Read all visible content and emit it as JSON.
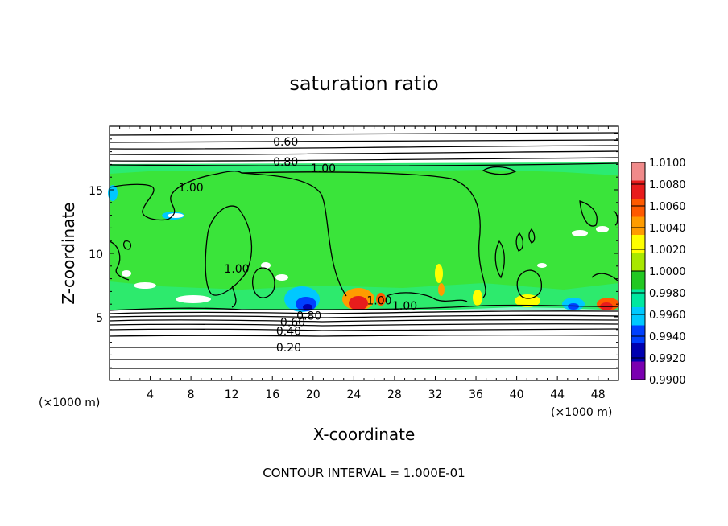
{
  "chart_data": {
    "type": "heatmap",
    "title": "saturation ratio",
    "xlabel": "X-coordinate",
    "ylabel": "Z-coordinate",
    "x_unit": "(×1000 m)",
    "z_unit": "(×1000 m)",
    "xlim": [
      0,
      50
    ],
    "ylim": [
      0,
      20
    ],
    "x_ticks": [
      4,
      8,
      12,
      16,
      20,
      24,
      28,
      32,
      36,
      40,
      44,
      48
    ],
    "y_ticks": [
      5,
      10,
      15
    ],
    "colorbar": {
      "ticks": [
        "1.0100",
        "1.0080",
        "1.0060",
        "1.0040",
        "1.0020",
        "1.0000",
        "0.9980",
        "0.9960",
        "0.9940",
        "0.9920",
        "0.9900"
      ],
      "colors": [
        "#f08a8a",
        "#e81c1c",
        "#ff5a00",
        "#ff9c00",
        "#ffff00",
        "#a8e800",
        "#22c822",
        "#00e8a0",
        "#00c8ff",
        "#0040ff",
        "#0000b0",
        "#7a00b0"
      ]
    },
    "contour_labels": [
      {
        "text": "0.60",
        "x": 17.3,
        "z": 18.8
      },
      {
        "text": "0.80",
        "x": 17.3,
        "z": 17.2
      },
      {
        "text": "1.00",
        "x": 21.0,
        "z": 16.7
      },
      {
        "text": "1.00",
        "x": 8.0,
        "z": 15.2
      },
      {
        "text": "1.00",
        "x": 12.5,
        "z": 8.8
      },
      {
        "text": "1.00",
        "x": 29.0,
        "z": 5.9
      },
      {
        "text": "1.00",
        "x": 26.5,
        "z": 6.3
      },
      {
        "text": "0.80",
        "x": 19.6,
        "z": 5.1
      },
      {
        "text": "0.60",
        "x": 18.0,
        "z": 4.6
      },
      {
        "text": "0.40",
        "x": 17.6,
        "z": 3.9
      },
      {
        "text": "0.20",
        "x": 17.6,
        "z": 2.6
      }
    ],
    "contour_interval": "CONTOUR INTERVAL = 1.000E-01"
  }
}
